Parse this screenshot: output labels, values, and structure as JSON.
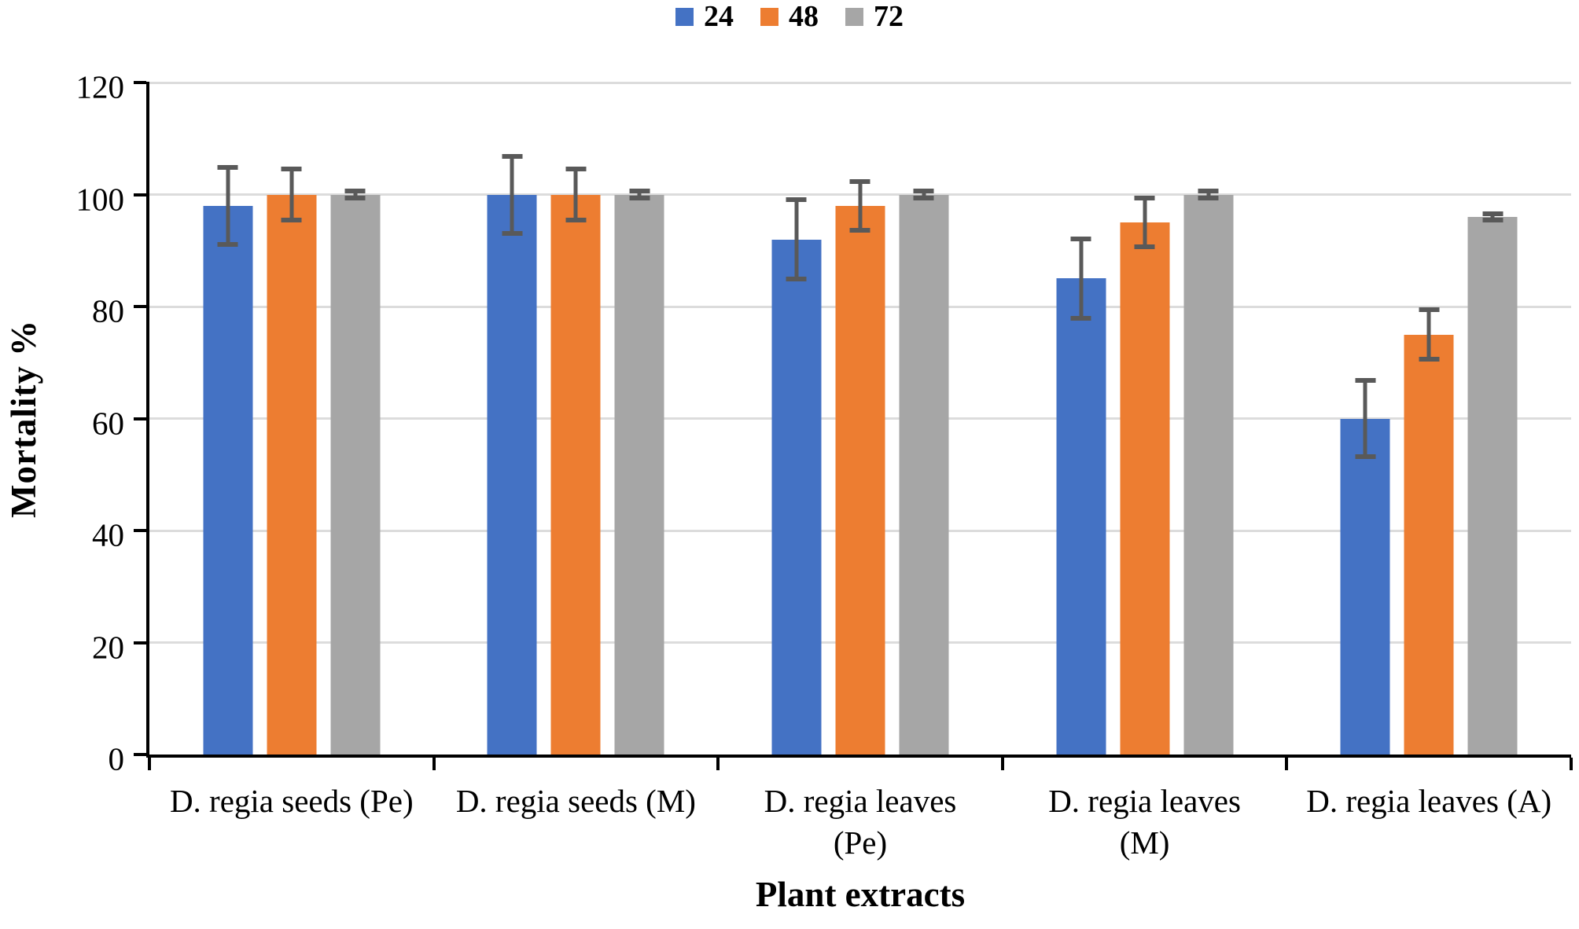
{
  "chart_data": {
    "type": "bar",
    "title": "",
    "xlabel": "Plant extracts",
    "ylabel": "Mortality %",
    "ylim": [
      0,
      120
    ],
    "yticks": [
      0,
      20,
      40,
      60,
      80,
      100,
      120
    ],
    "grid": true,
    "legend_position": "top-center",
    "categories": [
      "D. regia seeds (Pe)",
      "D. regia seeds (M)",
      "D. regia leaves (Pe)",
      "D. regia leaves (M)",
      "D. regia leaves (A)"
    ],
    "category_lines": [
      [
        "D. regia seeds (Pe)"
      ],
      [
        "D. regia seeds (M)"
      ],
      [
        "D. regia leaves",
        "(Pe)"
      ],
      [
        "D. regia leaves",
        "(M)"
      ],
      [
        "D. regia leaves (A)"
      ]
    ],
    "series": [
      {
        "name": "24",
        "color": "#4472C4",
        "values": [
          98,
          100,
          92,
          85,
          60
        ],
        "errors": [
          7.3,
          7.3,
          7.5,
          7.5,
          7.2
        ]
      },
      {
        "name": "48",
        "color": "#ED7D31",
        "values": [
          100,
          100,
          98,
          95,
          75
        ],
        "errors": [
          5,
          5,
          4.8,
          4.8,
          4.8
        ]
      },
      {
        "name": "72",
        "color": "#A6A6A6",
        "values": [
          100,
          100,
          100,
          100,
          96
        ],
        "errors": [
          1,
          1,
          1,
          1,
          1
        ]
      }
    ],
    "error_bar_color": "#595959",
    "gridline_color": "#DCDCDC",
    "axis_color": "#000000",
    "background_color": "#FFFFFF"
  }
}
